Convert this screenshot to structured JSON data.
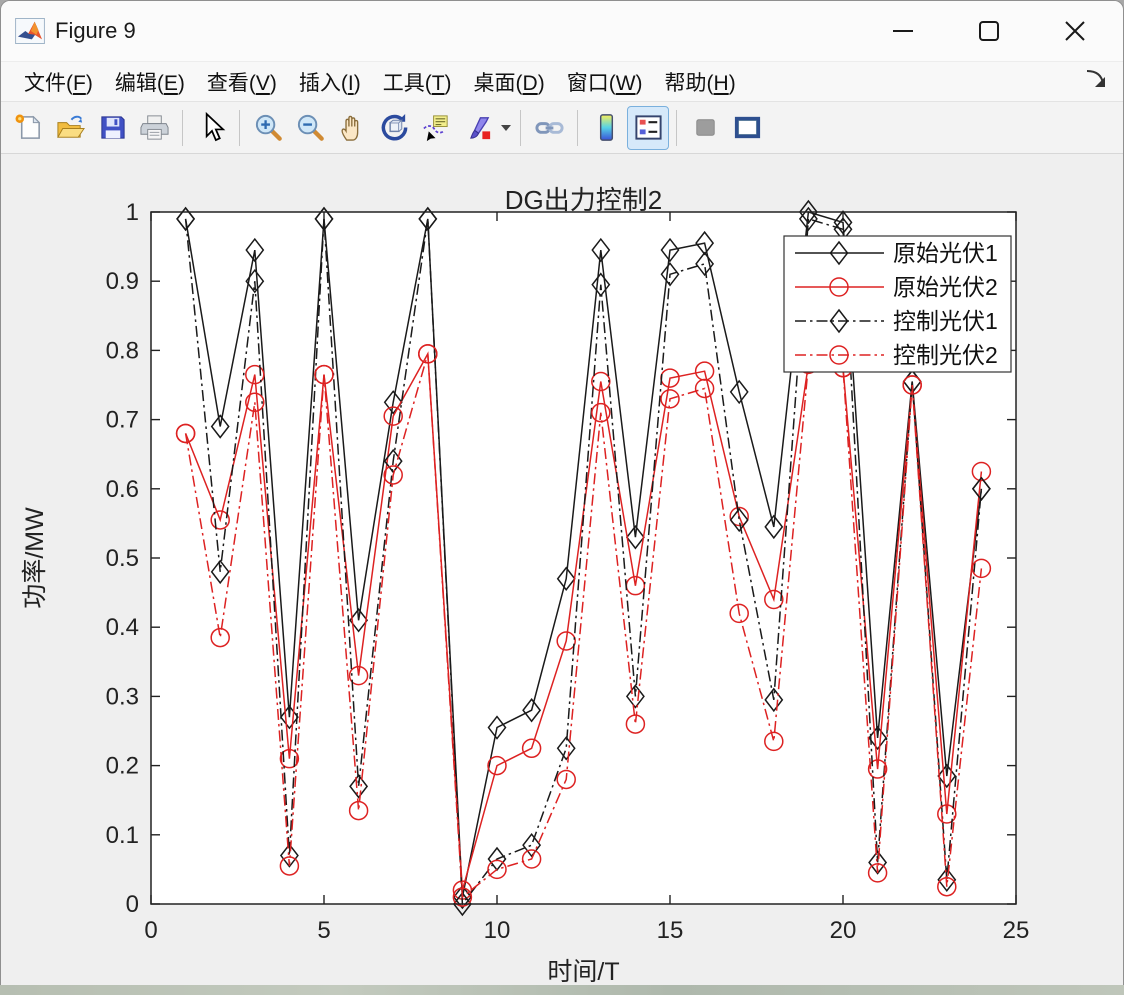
{
  "window": {
    "title": "Figure 9",
    "buttons": [
      {
        "name": "minimize"
      },
      {
        "name": "maximize"
      },
      {
        "name": "close"
      }
    ]
  },
  "menu": {
    "items": [
      {
        "label": "文件",
        "key": "F"
      },
      {
        "label": "编辑",
        "key": "E"
      },
      {
        "label": "查看",
        "key": "V"
      },
      {
        "label": "插入",
        "key": "I"
      },
      {
        "label": "工具",
        "key": "T"
      },
      {
        "label": "桌面",
        "key": "D"
      },
      {
        "label": "窗口",
        "key": "W"
      },
      {
        "label": "帮助",
        "key": "H"
      }
    ]
  },
  "toolbar": {
    "icons": [
      {
        "name": "new-figure-icon",
        "group": 1
      },
      {
        "name": "open-file-icon",
        "group": 1
      },
      {
        "name": "save-icon",
        "group": 1
      },
      {
        "name": "print-icon",
        "group": 1
      },
      {
        "name": "cursor-arrow-icon",
        "group": 2
      },
      {
        "name": "zoom-in-icon",
        "group": 3
      },
      {
        "name": "zoom-out-icon",
        "group": 3
      },
      {
        "name": "pan-hand-icon",
        "group": 3
      },
      {
        "name": "rotate-3d-icon",
        "group": 3
      },
      {
        "name": "data-cursor-icon",
        "group": 3
      },
      {
        "name": "brush-icon",
        "group": 3,
        "has_dropdown": true
      },
      {
        "name": "link-plot-icon",
        "group": 4
      },
      {
        "name": "insert-colorbar-icon",
        "group": 5
      },
      {
        "name": "insert-legend-icon",
        "group": 5,
        "active": true
      },
      {
        "name": "plotedit-icon",
        "group": 6,
        "disabled": true
      },
      {
        "name": "dock-figure-icon",
        "group": 6
      }
    ]
  },
  "chart_data": {
    "type": "line",
    "title": "DG出力控制2",
    "xlabel": "时间/T",
    "ylabel": "功率/MW",
    "xlim": [
      0,
      25
    ],
    "ylim": [
      0,
      1
    ],
    "xticks": [
      0,
      5,
      10,
      15,
      20,
      25
    ],
    "yticks": [
      0,
      0.1,
      0.2,
      0.3,
      0.4,
      0.5,
      0.6,
      0.7,
      0.8,
      0.9,
      1
    ],
    "grid": false,
    "legend_position": "top-right",
    "x": [
      1,
      2,
      3,
      4,
      5,
      6,
      7,
      8,
      9,
      10,
      11,
      12,
      13,
      14,
      15,
      16,
      17,
      18,
      19,
      20,
      21,
      22,
      23,
      24
    ],
    "series": [
      {
        "name": "原始光伏1",
        "color": "#1a1a1a",
        "line": "solid",
        "marker": "diamond",
        "values": [
          0.99,
          0.69,
          0.945,
          0.27,
          0.99,
          0.41,
          0.725,
          0.99,
          0.01,
          0.255,
          0.28,
          0.47,
          0.945,
          0.53,
          0.945,
          0.955,
          0.74,
          0.545,
          1.0,
          0.985,
          0.24,
          0.755,
          0.185,
          0.6
        ]
      },
      {
        "name": "原始光伏2",
        "color": "#dd2222",
        "line": "solid",
        "marker": "circle",
        "values": [
          0.68,
          0.555,
          0.765,
          0.21,
          0.765,
          0.33,
          0.705,
          0.795,
          0.02,
          0.2,
          0.225,
          0.38,
          0.755,
          0.46,
          0.76,
          0.77,
          0.56,
          0.44,
          0.78,
          0.775,
          0.195,
          0.75,
          0.13,
          0.625
        ]
      },
      {
        "name": "控制光伏1",
        "color": "#1a1a1a",
        "line": "dashdot",
        "marker": "diamond",
        "values": [
          0.99,
          0.48,
          0.9,
          0.07,
          0.99,
          0.17,
          0.64,
          0.99,
          0.0,
          0.065,
          0.085,
          0.225,
          0.895,
          0.3,
          0.91,
          0.925,
          0.555,
          0.295,
          0.99,
          0.975,
          0.06,
          0.755,
          0.035,
          0.6
        ]
      },
      {
        "name": "控制光伏2",
        "color": "#dd2222",
        "line": "dashdot",
        "marker": "circle",
        "values": [
          0.68,
          0.385,
          0.725,
          0.055,
          0.765,
          0.135,
          0.62,
          0.795,
          0.01,
          0.05,
          0.065,
          0.18,
          0.71,
          0.26,
          0.73,
          0.745,
          0.42,
          0.235,
          0.78,
          0.775,
          0.045,
          0.75,
          0.025,
          0.485
        ]
      }
    ]
  }
}
